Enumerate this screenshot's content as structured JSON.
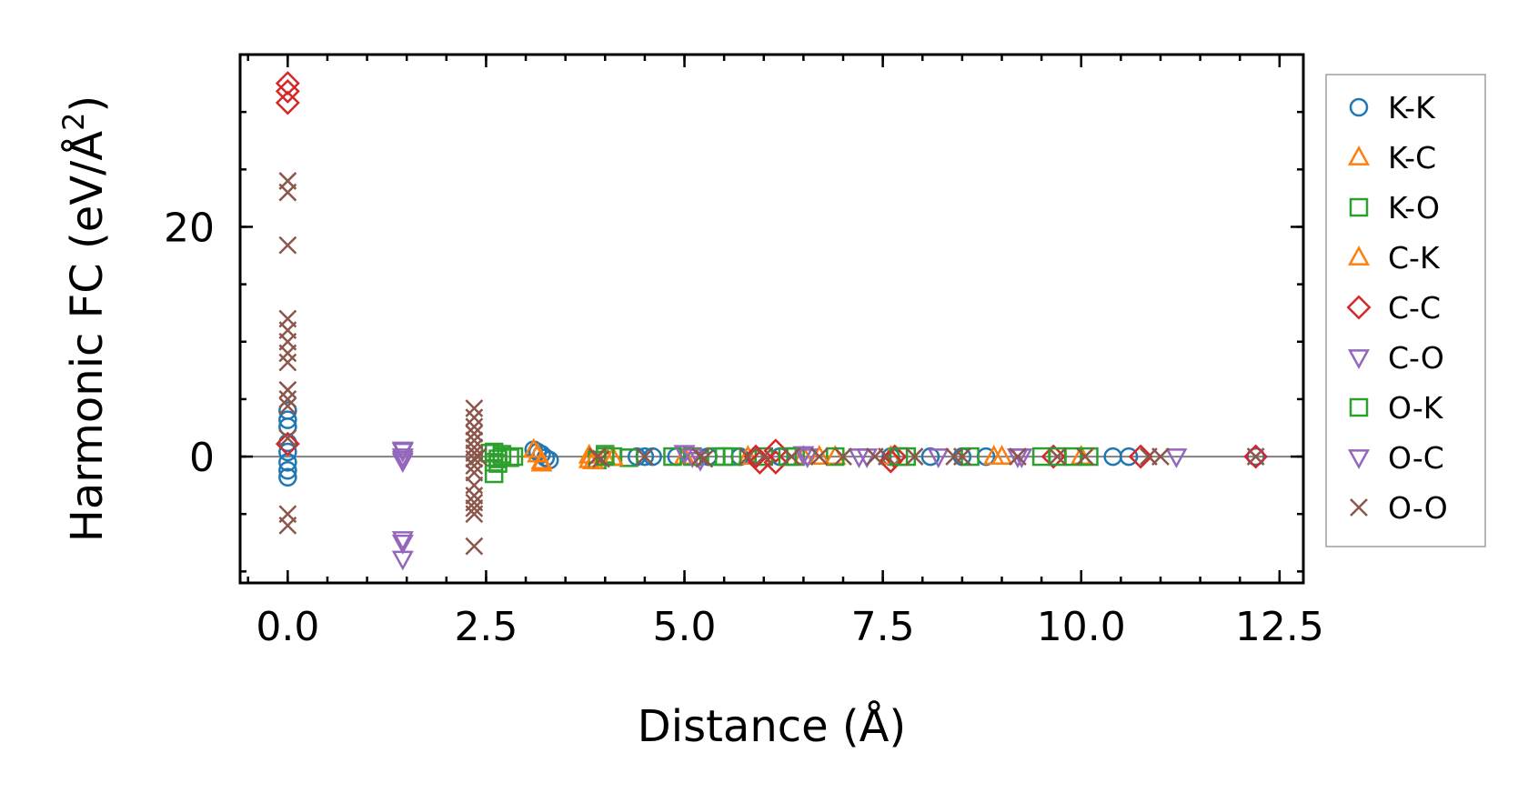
{
  "chart_data": {
    "type": "scatter",
    "title": "",
    "xlabel": "Distance (Å)",
    "ylabel_main": "Harmonic FC (eV/Å",
    "ylabel_sup": "2",
    "ylabel_end": ")",
    "xlim": [
      -0.6,
      12.8
    ],
    "ylim": [
      -11,
      35
    ],
    "x_ticks": [
      0.0,
      2.5,
      5.0,
      7.5,
      10.0,
      12.5
    ],
    "x_tick_labels": [
      "0.0",
      "2.5",
      "5.0",
      "7.5",
      "10.0",
      "12.5"
    ],
    "y_ticks": [
      0,
      20
    ],
    "y_tick_labels": [
      "0",
      "20"
    ],
    "x_minor_step": 0.5,
    "y_minor_step": 5,
    "zero_line": true,
    "grid": false,
    "legend_position": "outside-right",
    "series": [
      {
        "name": "K-K",
        "marker": "circle",
        "color": "#1f77b4",
        "points": [
          [
            0,
            4
          ],
          [
            0,
            3.2
          ],
          [
            0,
            2.6
          ],
          [
            0,
            1.2
          ],
          [
            0,
            0.4
          ],
          [
            0,
            -0.5
          ],
          [
            0,
            -1.2
          ],
          [
            0,
            -1.8
          ],
          [
            3.1,
            0.6
          ],
          [
            3.15,
            0.4
          ],
          [
            3.2,
            0.2
          ],
          [
            3.25,
            -0.1
          ],
          [
            3.3,
            -0.3
          ],
          [
            4.4,
            0
          ],
          [
            4.5,
            0
          ],
          [
            4.6,
            0
          ],
          [
            4.9,
            0
          ],
          [
            5.3,
            0
          ],
          [
            5.7,
            0
          ],
          [
            6.2,
            0
          ],
          [
            7.6,
            0
          ],
          [
            8.1,
            0
          ],
          [
            8.5,
            0
          ],
          [
            8.8,
            0
          ],
          [
            10.4,
            0
          ],
          [
            10.6,
            0
          ],
          [
            12.2,
            0
          ]
        ]
      },
      {
        "name": "K-C",
        "marker": "triangle-up",
        "color": "#ff7f0e",
        "points": [
          [
            3.15,
            0.2
          ],
          [
            3.2,
            -0.4
          ],
          [
            3.8,
            0.1
          ],
          [
            3.8,
            -0.3
          ],
          [
            4.0,
            0
          ],
          [
            5.0,
            0
          ],
          [
            5.8,
            0
          ],
          [
            6.5,
            0
          ],
          [
            6.9,
            0
          ],
          [
            7.6,
            0
          ],
          [
            9.0,
            0
          ],
          [
            10.0,
            0
          ]
        ]
      },
      {
        "name": "K-O",
        "marker": "square",
        "color": "#2ca02c",
        "points": [
          [
            2.55,
            0.3
          ],
          [
            2.6,
            -0.5
          ],
          [
            2.6,
            -1.5
          ],
          [
            2.65,
            -0.2
          ],
          [
            2.7,
            0.2
          ],
          [
            2.8,
            -0.1
          ],
          [
            2.85,
            0
          ],
          [
            3.9,
            -0.3
          ],
          [
            4.0,
            0.2
          ],
          [
            4.1,
            0
          ],
          [
            4.3,
            -0.1
          ],
          [
            4.85,
            0
          ],
          [
            5.1,
            0
          ],
          [
            5.5,
            0
          ],
          [
            5.6,
            0
          ],
          [
            6.0,
            0
          ],
          [
            6.4,
            0
          ],
          [
            6.9,
            0
          ],
          [
            7.8,
            0
          ],
          [
            8.6,
            0
          ],
          [
            9.5,
            0
          ],
          [
            9.9,
            0
          ],
          [
            10.1,
            0
          ]
        ]
      },
      {
        "name": "C-K",
        "marker": "triangle-up",
        "color": "#ff7f0e",
        "points": [
          [
            3.1,
            0.6
          ],
          [
            3.2,
            -0.6
          ],
          [
            3.85,
            -0.4
          ],
          [
            4.1,
            -0.1
          ],
          [
            6.7,
            0
          ],
          [
            8.9,
            0
          ]
        ]
      },
      {
        "name": "C-C",
        "marker": "diamond",
        "color": "#d62728",
        "points": [
          [
            0,
            32.5
          ],
          [
            0,
            31.8
          ],
          [
            0,
            30.8
          ],
          [
            0,
            1.1
          ],
          [
            5.9,
            0
          ],
          [
            5.95,
            -0.5
          ],
          [
            6.15,
            0.5
          ],
          [
            6.15,
            -0.5
          ],
          [
            7.6,
            -0.4
          ],
          [
            7.65,
            0
          ],
          [
            9.65,
            0
          ],
          [
            10.75,
            0
          ],
          [
            12.2,
            0
          ]
        ]
      },
      {
        "name": "C-O",
        "marker": "triangle-down",
        "color": "#9467bd",
        "points": [
          [
            1.45,
            0.5
          ],
          [
            1.45,
            0
          ],
          [
            1.45,
            -0.4
          ],
          [
            1.45,
            -7.5
          ],
          [
            1.45,
            -8.9
          ],
          [
            5.0,
            0.3
          ],
          [
            5.2,
            -0.3
          ],
          [
            6.5,
            0.2
          ],
          [
            7.2,
            0
          ],
          [
            8.2,
            0
          ],
          [
            9.2,
            0
          ],
          [
            11.2,
            0
          ]
        ]
      },
      {
        "name": "O-K",
        "marker": "square",
        "color": "#2ca02c",
        "points": [
          [
            2.6,
            0.4
          ],
          [
            2.65,
            -0.6
          ],
          [
            2.7,
            0
          ],
          [
            4.0,
            0
          ],
          [
            5.4,
            0
          ],
          [
            6.3,
            0
          ],
          [
            7.7,
            0
          ],
          [
            9.7,
            0
          ]
        ]
      },
      {
        "name": "O-C",
        "marker": "triangle-down",
        "color": "#9467bd",
        "points": [
          [
            1.45,
            0.6
          ],
          [
            1.45,
            -0.2
          ],
          [
            1.45,
            -7.2
          ],
          [
            5.1,
            0
          ],
          [
            6.55,
            0
          ],
          [
            7.3,
            0
          ],
          [
            9.25,
            0
          ]
        ]
      },
      {
        "name": "O-O",
        "marker": "x",
        "color": "#8c564b",
        "points": [
          [
            0,
            24
          ],
          [
            0,
            23
          ],
          [
            0,
            18.4
          ],
          [
            0,
            12
          ],
          [
            0,
            11
          ],
          [
            0,
            10
          ],
          [
            0,
            9
          ],
          [
            0,
            8.2
          ],
          [
            0,
            5.8
          ],
          [
            0,
            5
          ],
          [
            0,
            4.4
          ],
          [
            0,
            1.6
          ],
          [
            0,
            -5
          ],
          [
            0,
            -6
          ],
          [
            2.35,
            4.2
          ],
          [
            2.35,
            3.4
          ],
          [
            2.35,
            2.6
          ],
          [
            2.35,
            2
          ],
          [
            2.35,
            1.4
          ],
          [
            2.35,
            0.8
          ],
          [
            2.35,
            0.3
          ],
          [
            2.35,
            -0.2
          ],
          [
            2.35,
            -0.8
          ],
          [
            2.35,
            -1.4
          ],
          [
            2.35,
            -2.5
          ],
          [
            2.35,
            -3.4
          ],
          [
            2.35,
            -4
          ],
          [
            2.35,
            -4.5
          ],
          [
            2.35,
            -5
          ],
          [
            2.35,
            -7.8
          ],
          [
            2.4,
            0
          ],
          [
            3.9,
            0
          ],
          [
            3.95,
            -0.2
          ],
          [
            4.5,
            0
          ],
          [
            5.2,
            0
          ],
          [
            5.25,
            -0.2
          ],
          [
            5.8,
            0
          ],
          [
            6.0,
            0
          ],
          [
            6.35,
            0
          ],
          [
            6.7,
            0
          ],
          [
            7.0,
            0
          ],
          [
            7.4,
            0
          ],
          [
            7.55,
            0
          ],
          [
            7.9,
            0
          ],
          [
            8.4,
            0
          ],
          [
            8.5,
            0
          ],
          [
            9.2,
            0
          ],
          [
            9.7,
            0
          ],
          [
            10.05,
            0
          ],
          [
            10.85,
            0
          ],
          [
            11.0,
            0
          ],
          [
            12.2,
            0
          ]
        ]
      }
    ]
  }
}
